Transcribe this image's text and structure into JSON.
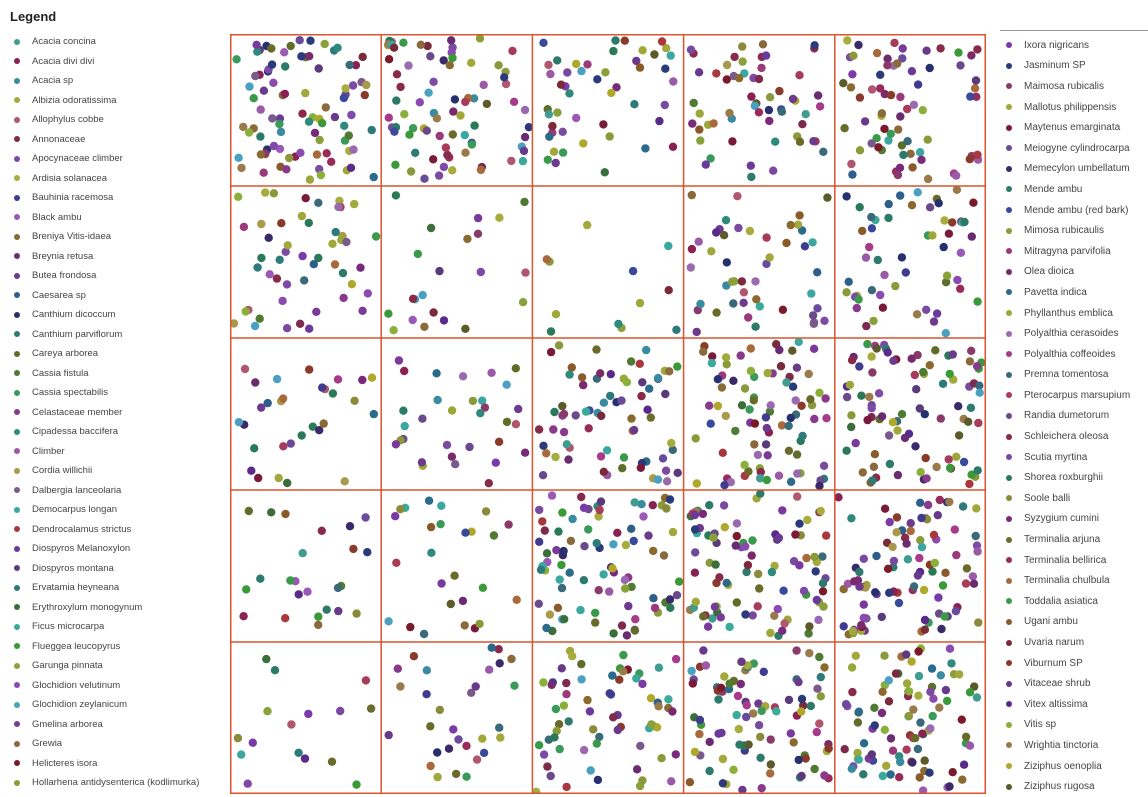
{
  "legend": {
    "title": "Legend",
    "left": [
      {
        "label": "Acacia concina",
        "color": "#3f9c8e"
      },
      {
        "label": "Acacia divi divi",
        "color": "#8b2152"
      },
      {
        "label": "Acacia sp",
        "color": "#3a8aa0"
      },
      {
        "label": "Albizia odoratissima",
        "color": "#a3a83b"
      },
      {
        "label": "Allophylus cobbe",
        "color": "#b0566e"
      },
      {
        "label": "Annonaceae",
        "color": "#7d2a4e"
      },
      {
        "label": "Apocynaceae climber",
        "color": "#7d4aa8"
      },
      {
        "label": "Ardisia solanacea",
        "color": "#a6ad3c"
      },
      {
        "label": "Bauhinia racemosa",
        "color": "#3f3c8f"
      },
      {
        "label": "Black ambu",
        "color": "#9b59b6"
      },
      {
        "label": "Breniya Vitis-idaea",
        "color": "#8a6a2f"
      },
      {
        "label": "Breynia retusa",
        "color": "#6a2c70"
      },
      {
        "label": "Butea frondosa",
        "color": "#6e3a8e"
      },
      {
        "label": "Caesarea sp",
        "color": "#2e5e8a"
      },
      {
        "label": "Canthium dicoccum",
        "color": "#27306e"
      },
      {
        "label": "Canthium parviflorum",
        "color": "#2e7a6e"
      },
      {
        "label": "Careya arborea",
        "color": "#5e6e2a"
      },
      {
        "label": "Cassia fistula",
        "color": "#4e7a32"
      },
      {
        "label": "Cassia spectabilis",
        "color": "#3a9a5a"
      },
      {
        "label": "Celastaceae member",
        "color": "#8a3a8a"
      },
      {
        "label": "Cipadessa baccifera",
        "color": "#2f8a7e"
      },
      {
        "label": "Climber",
        "color": "#9a5aa8"
      },
      {
        "label": "Cordia willichii",
        "color": "#a89a4a"
      },
      {
        "label": "Dalbergia lanceolaria",
        "color": "#7a5a8a"
      },
      {
        "label": "Democarpus longan",
        "color": "#3aa8a0"
      },
      {
        "label": "Dendrocalamus strictus",
        "color": "#a8383e"
      },
      {
        "label": "Diospyros Melanoxylon",
        "color": "#6a3a9a"
      },
      {
        "label": "Diospyros montana",
        "color": "#5a3a7a"
      },
      {
        "label": "Ervatamia heyneana",
        "color": "#2e7a7a"
      },
      {
        "label": "Erythroxylum monogynum",
        "color": "#3a6e3a"
      },
      {
        "label": "Ficus microcarpa",
        "color": "#3aaa9a"
      },
      {
        "label": "Flueggea leucopyrus",
        "color": "#3a9a3a"
      },
      {
        "label": "Garunga pinnata",
        "color": "#8aa03a"
      },
      {
        "label": "Glochidion velutinum",
        "color": "#8a4ab0"
      },
      {
        "label": "Glochidion zeylanicum",
        "color": "#4aa0c0"
      },
      {
        "label": "Gmelina arborea",
        "color": "#7a3a9a"
      },
      {
        "label": "Grewia",
        "color": "#8a6a3a"
      },
      {
        "label": "Helicteres isora",
        "color": "#7a1a2a"
      },
      {
        "label": "Hollarhena antidysenterica (kodlimurka)",
        "color": "#8a9a3a"
      }
    ],
    "right": [
      {
        "label": "Ixora nigricans",
        "color": "#7a3aa8"
      },
      {
        "label": "Jasminum SP",
        "color": "#2a3a7a"
      },
      {
        "label": "Maimosa rubicalis",
        "color": "#8a3a6a"
      },
      {
        "label": "Mallotus philippensis",
        "color": "#a0a83a"
      },
      {
        "label": "Maytenus emarginata",
        "color": "#7a1a3a"
      },
      {
        "label": "Meiogyne cylindrocarpa",
        "color": "#6a4a9a"
      },
      {
        "label": "Memecylon umbellatum",
        "color": "#3a2a6a"
      },
      {
        "label": "Mende ambu",
        "color": "#2e7a6a"
      },
      {
        "label": "Mende ambu (red bark)",
        "color": "#3a4a9a"
      },
      {
        "label": "Mimosa rubicaulis",
        "color": "#8a9a3a"
      },
      {
        "label": "Mitragyna parvifolia",
        "color": "#9a3a7a"
      },
      {
        "label": "Olea dioica",
        "color": "#7a2a6a"
      },
      {
        "label": "Pavetta indica",
        "color": "#2a6a8a"
      },
      {
        "label": "Phyllanthus emblica",
        "color": "#9aa83a"
      },
      {
        "label": "Polyalthia cerasoides",
        "color": "#9a6ab0"
      },
      {
        "label": "Polyalthia coffeoides",
        "color": "#a83a8a"
      },
      {
        "label": "Premna tomentosa",
        "color": "#3a6a7a"
      },
      {
        "label": "Pterocarpus marsupium",
        "color": "#a83a5a"
      },
      {
        "label": "Randia dumetorum",
        "color": "#6a4a8a"
      },
      {
        "label": "Schleichera oleosa",
        "color": "#8a2a4a"
      },
      {
        "label": "Scutia myrtina",
        "color": "#7a4aa0"
      },
      {
        "label": "Shorea  roxburghii",
        "color": "#2a7a5a"
      },
      {
        "label": "Soole balli",
        "color": "#8a8a3a"
      },
      {
        "label": "Syzygium cumini",
        "color": "#7a2a7a"
      },
      {
        "label": "Terminalia arjuna",
        "color": "#6a6a2a"
      },
      {
        "label": "Terminalia bellirica",
        "color": "#9a2a5a"
      },
      {
        "label": "Terminalia chulbula",
        "color": "#a86a3a"
      },
      {
        "label": "Toddalia asiatica",
        "color": "#3a9a4a"
      },
      {
        "label": "Ugani ambu",
        "color": "#8a5a2a"
      },
      {
        "label": "Uvaria narum",
        "color": "#7a2a3a"
      },
      {
        "label": "Viburnum SP",
        "color": "#8a3a2a"
      },
      {
        "label": "Vitaceae shrub",
        "color": "#6a3a8a"
      },
      {
        "label": "Vitex altissima",
        "color": "#5a2a8a"
      },
      {
        "label": "Vitis sp",
        "color": "#8ab03a"
      },
      {
        "label": "Wrightia tinctoria",
        "color": "#9a7a4a"
      },
      {
        "label": "Ziziphus oenoplia",
        "color": "#b0a82a"
      },
      {
        "label": "Ziziphus rugosa",
        "color": "#5a5a2a"
      }
    ]
  },
  "chart_data": {
    "type": "scatter",
    "grid": {
      "rows": 5,
      "cols": 5,
      "line_color": "#d9542f"
    },
    "xlim": [
      0,
      5
    ],
    "ylim": [
      0,
      5
    ],
    "cells": [
      [
        88,
        78,
        48,
        58,
        72
      ],
      [
        50,
        22,
        12,
        48,
        55
      ],
      [
        30,
        32,
        70,
        85,
        90
      ],
      [
        24,
        26,
        85,
        95,
        95
      ],
      [
        16,
        30,
        66,
        92,
        95
      ]
    ],
    "cell_density_note": "",
    "series_colors": []
  }
}
